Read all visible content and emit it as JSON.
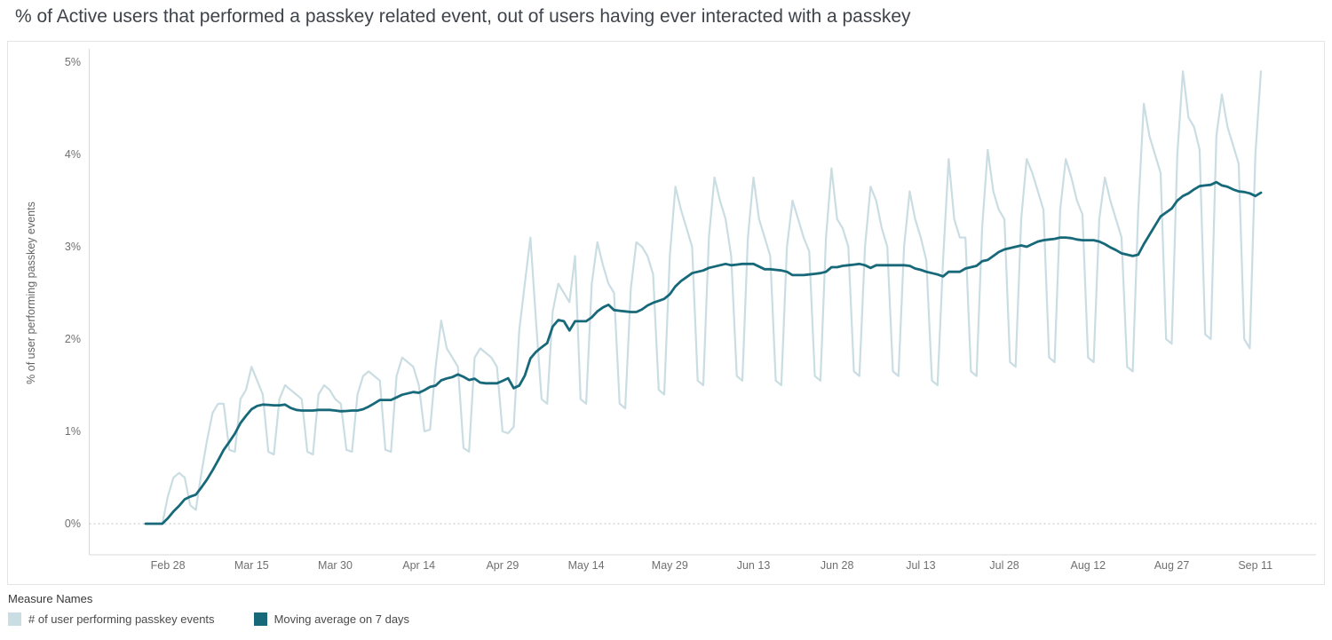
{
  "title": "% of Active users that performed a passkey related event, out of users having ever interacted with a passkey",
  "legend": {
    "title": "Measure Names",
    "items": [
      {
        "label": "# of user performing passkey events",
        "color": "#c9dde3"
      },
      {
        "label": "Moving average on 7 days",
        "color": "#17697a"
      }
    ]
  },
  "chart_data": {
    "type": "line",
    "title": "% of Active users that performed a passkey related event, out of users having ever interacted with a passkey",
    "xlabel": "",
    "ylabel": "% of user performing passkey events",
    "ylim": [
      0,
      5
    ],
    "y_ticks": [
      "0%",
      "1%",
      "2%",
      "3%",
      "4%",
      "5%"
    ],
    "x_cadence": "daily",
    "x_start": "Feb 24",
    "x_end": "Sep 12",
    "x_ticks": [
      {
        "day": 4,
        "label": "Feb 28"
      },
      {
        "day": 19,
        "label": "Mar 15"
      },
      {
        "day": 34,
        "label": "Mar 30"
      },
      {
        "day": 49,
        "label": "Apr 14"
      },
      {
        "day": 64,
        "label": "Apr 29"
      },
      {
        "day": 79,
        "label": "May 14"
      },
      {
        "day": 94,
        "label": "May 29"
      },
      {
        "day": 109,
        "label": "Jun 13"
      },
      {
        "day": 124,
        "label": "Jun 28"
      },
      {
        "day": 139,
        "label": "Jul 13"
      },
      {
        "day": 154,
        "label": "Jul 28"
      },
      {
        "day": 169,
        "label": "Aug 12"
      },
      {
        "day": 184,
        "label": "Aug 27"
      },
      {
        "day": 199,
        "label": "Sep 11"
      }
    ],
    "grid": "dotted-zero-line-only",
    "legend_position": "bottom-left",
    "series": [
      {
        "name": "# of user performing passkey events",
        "color": "#c9dde3",
        "values": [
          0,
          0,
          0,
          0,
          0.3,
          0.5,
          0.55,
          0.5,
          0.2,
          0.15,
          0.55,
          0.9,
          1.2,
          1.3,
          1.3,
          0.8,
          0.78,
          1.35,
          1.45,
          1.7,
          1.55,
          1.4,
          0.78,
          0.75,
          1.35,
          1.5,
          1.45,
          1.4,
          1.35,
          0.78,
          0.75,
          1.4,
          1.5,
          1.45,
          1.35,
          1.3,
          0.8,
          0.78,
          1.4,
          1.6,
          1.65,
          1.6,
          1.55,
          0.8,
          0.78,
          1.6,
          1.8,
          1.75,
          1.7,
          1.5,
          1.0,
          1.02,
          1.7,
          2.2,
          1.9,
          1.8,
          1.7,
          0.82,
          0.78,
          1.8,
          1.9,
          1.85,
          1.8,
          1.7,
          1.0,
          0.98,
          1.05,
          2.1,
          2.6,
          3.1,
          2.2,
          1.35,
          1.3,
          2.3,
          2.6,
          2.5,
          2.4,
          2.9,
          1.35,
          1.3,
          2.6,
          3.05,
          2.8,
          2.6,
          2.5,
          1.3,
          1.25,
          2.55,
          3.05,
          3.0,
          2.9,
          2.7,
          1.45,
          1.4,
          2.9,
          3.65,
          3.4,
          3.2,
          3.0,
          1.55,
          1.5,
          3.1,
          3.75,
          3.5,
          3.3,
          2.9,
          1.6,
          1.55,
          3.1,
          3.75,
          3.3,
          3.1,
          2.9,
          1.55,
          1.5,
          3.0,
          3.5,
          3.3,
          3.1,
          2.95,
          1.6,
          1.55,
          3.1,
          3.85,
          3.3,
          3.2,
          3.0,
          1.65,
          1.6,
          3.0,
          3.65,
          3.5,
          3.2,
          3.0,
          1.65,
          1.6,
          3.0,
          3.6,
          3.3,
          3.1,
          2.85,
          1.55,
          1.5,
          2.85,
          3.95,
          3.3,
          3.1,
          3.1,
          1.65,
          1.6,
          3.2,
          4.05,
          3.6,
          3.4,
          3.3,
          1.75,
          1.7,
          3.3,
          3.95,
          3.8,
          3.6,
          3.4,
          1.8,
          1.75,
          3.4,
          3.95,
          3.75,
          3.5,
          3.35,
          1.8,
          1.75,
          3.3,
          3.75,
          3.5,
          3.3,
          3.1,
          1.7,
          1.65,
          3.4,
          4.55,
          4.2,
          4.0,
          3.8,
          2.0,
          1.95,
          4.0,
          4.9,
          4.4,
          4.3,
          4.05,
          2.05,
          2.0,
          4.2,
          4.65,
          4.3,
          4.1,
          3.9,
          2.0,
          1.9,
          4.0,
          4.9
        ]
      },
      {
        "name": "Moving average on 7 days",
        "color": "#17697a",
        "derived": "trailing mean of the daily series",
        "window_days": 7
      }
    ]
  }
}
